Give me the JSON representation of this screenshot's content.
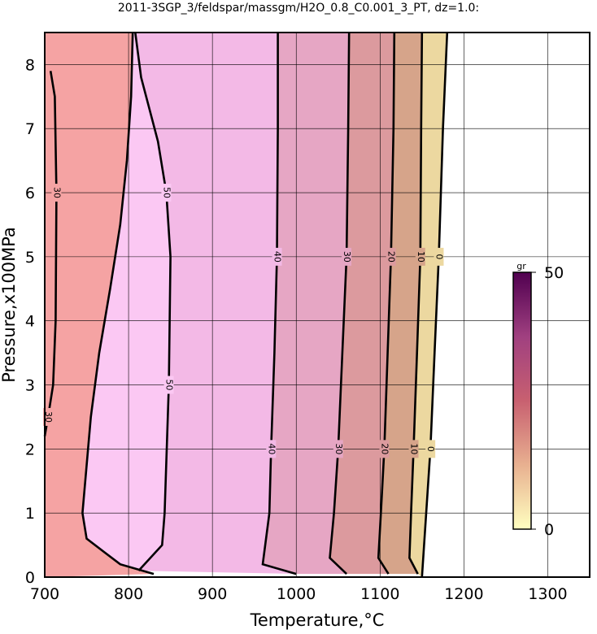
{
  "chart_data": {
    "type": "contour",
    "title": "2011-3SGP_3/feldspar/massgm/H2O_0.8_C0.001_3_PT, dz=1.0:",
    "x_label": "Temperature,°C",
    "y_label": "Pressure,x100MPa",
    "xlim": [
      700,
      1350
    ],
    "xticks": [
      700,
      800,
      900,
      1000,
      1100,
      1200,
      1300
    ],
    "ylim": [
      0,
      8.5
    ],
    "yticks": [
      0,
      1,
      2,
      3,
      4,
      5,
      6,
      7,
      8
    ],
    "grid": true,
    "contours": [
      {
        "x": [
          805,
          803,
          798,
          790,
          778,
          765,
          755,
          745,
          750,
          790,
          830
        ],
        "y": [
          8.5,
          7.5,
          6.5,
          5.5,
          4.5,
          3.5,
          2.5,
          1,
          0.6,
          0.2,
          0.05
        ],
        "fill": "#f5a3a3"
      },
      {
        "level": 50,
        "x": [
          808,
          815,
          835,
          845,
          850,
          848,
          843,
          840,
          812
        ],
        "y": [
          8.5,
          7.8,
          6.8,
          6,
          5,
          3,
          1,
          0.5,
          0.1
        ],
        "fill": "#fbc8f3"
      },
      {
        "level": 40,
        "x": [
          978,
          978,
          977,
          974,
          970,
          968,
          960,
          1000
        ],
        "y": [
          8.5,
          7,
          5,
          3.5,
          2,
          1,
          0.2,
          0.05
        ],
        "fill": "#f3b9e6"
      },
      {
        "level": 30,
        "x": [
          1063,
          1062,
          1060,
          1055,
          1050,
          1045,
          1040,
          1060
        ],
        "y": [
          8.5,
          7,
          5,
          3.5,
          2,
          1,
          0.3,
          0.05
        ],
        "fill": "#e6a6c4"
      },
      {
        "level": 20,
        "x": [
          1117,
          1116,
          1113,
          1109,
          1105,
          1101,
          1098,
          1110
        ],
        "y": [
          8.5,
          7,
          5,
          3.5,
          2,
          1,
          0.3,
          0.05
        ],
        "fill": "#dc9a9e"
      },
      {
        "level": 10,
        "x": [
          1150,
          1149,
          1148,
          1144,
          1140,
          1137,
          1135,
          1145
        ],
        "y": [
          8.5,
          7,
          5,
          3.5,
          2,
          1,
          0.3,
          0.05
        ],
        "fill": "#d6a48a"
      },
      {
        "level": 0,
        "x": [
          1180,
          1175,
          1170,
          1165,
          1160,
          1155,
          1150
        ],
        "y": [
          8.5,
          7,
          5,
          3.5,
          2,
          1,
          0
        ],
        "fill": "#ecd8a0"
      },
      {
        "level": 30,
        "x": [
          707,
          712,
          714,
          713,
          710,
          704,
          700
        ],
        "y": [
          7.9,
          7.5,
          6,
          4,
          3,
          2.5,
          2.2
        ]
      }
    ],
    "colorbar": {
      "label": "gr",
      "lim": [
        0,
        50
      ],
      "ticks": [
        0,
        50
      ],
      "colors": [
        "#ffffc0",
        "#e8b090",
        "#c86070",
        "#a04080",
        "#500050"
      ]
    }
  }
}
